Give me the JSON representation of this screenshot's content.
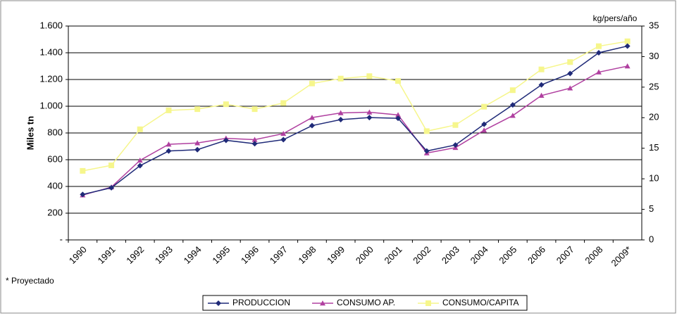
{
  "chart_data": {
    "type": "line",
    "y_label": "Miles tn",
    "y2_label": "kg/pers/año",
    "footnote": "* Proyectado",
    "categories": [
      "1990",
      "1991",
      "1992",
      "1993",
      "1994",
      "1995",
      "1996",
      "1997",
      "1998",
      "1999",
      "2000",
      "2001",
      "2002",
      "2003",
      "2004",
      "2005",
      "2006",
      "2007",
      "2008",
      "2009*"
    ],
    "ylim": [
      0,
      1600
    ],
    "yticks": [
      {
        "value": 0,
        "label": "-"
      },
      200,
      400,
      600,
      800,
      {
        "value": 1000,
        "label": "1.000"
      },
      {
        "value": 1200,
        "label": "1.200"
      },
      {
        "value": 1400,
        "label": "1.400"
      },
      {
        "value": 1600,
        "label": "1.600"
      }
    ],
    "y2lim": [
      0,
      35
    ],
    "y2ticks": [
      0,
      5,
      10,
      15,
      20,
      25,
      30,
      35
    ],
    "grid": true,
    "legend": "bottom",
    "series": [
      {
        "name": "PRODUCCION",
        "color": "#1f2a78",
        "marker": "diamond",
        "values": [
          340,
          390,
          555,
          665,
          675,
          745,
          720,
          750,
          855,
          900,
          915,
          910,
          665,
          710,
          865,
          1010,
          1160,
          1245,
          1400,
          1450
        ]
      },
      {
        "name": "CONSUMO AP.",
        "color": "#b040a0",
        "marker": "triangle",
        "values": [
          335,
          395,
          595,
          715,
          725,
          760,
          750,
          795,
          915,
          950,
          955,
          935,
          650,
          690,
          820,
          930,
          1080,
          1135,
          1255,
          1300
        ]
      },
      {
        "name": "CONSUMO/CAPITA",
        "color": "#f6f68c",
        "marker": "square",
        "axis": "y2",
        "values": [
          11.3,
          12.2,
          18.1,
          21.2,
          21.4,
          22.2,
          21.4,
          22.4,
          25.6,
          26.4,
          26.8,
          26,
          17.8,
          18.8,
          21.8,
          24.5,
          27.9,
          29.1,
          31.7,
          32.5
        ]
      }
    ]
  }
}
